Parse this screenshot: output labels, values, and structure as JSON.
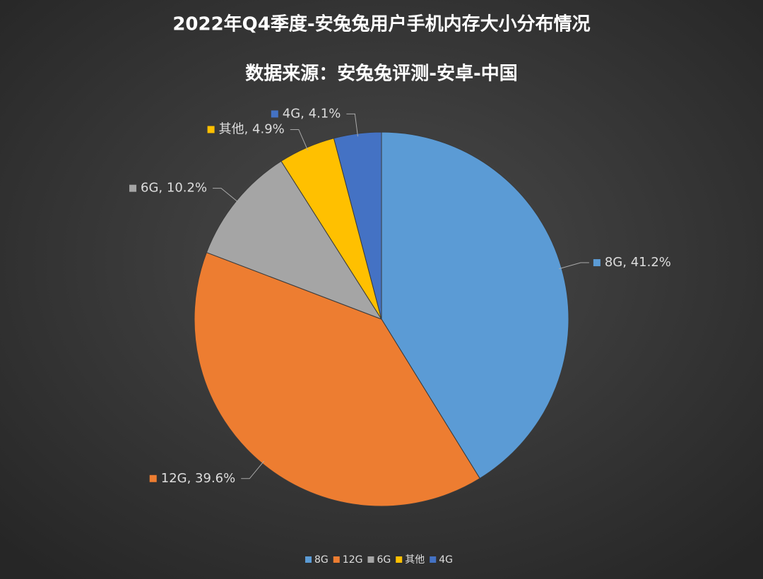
{
  "chart_data": {
    "type": "pie",
    "title": "2022年Q4季度-安兔兔用户手机内存大小分布情况",
    "subtitle": "数据来源：安兔兔评测-安卓-中国",
    "categories": [
      "8G",
      "12G",
      "6G",
      "其他",
      "4G"
    ],
    "values": [
      41.2,
      39.6,
      10.2,
      4.9,
      4.1
    ],
    "value_labels": [
      "8G, 41.2%",
      "12G, 39.6%",
      "6G, 10.2%",
      "其他, 4.9%",
      "4G, 4.1%"
    ],
    "colors": [
      "#5b9bd5",
      "#ed7d31",
      "#a5a5a5",
      "#ffc000",
      "#4472c4"
    ],
    "legend": "bottom"
  }
}
